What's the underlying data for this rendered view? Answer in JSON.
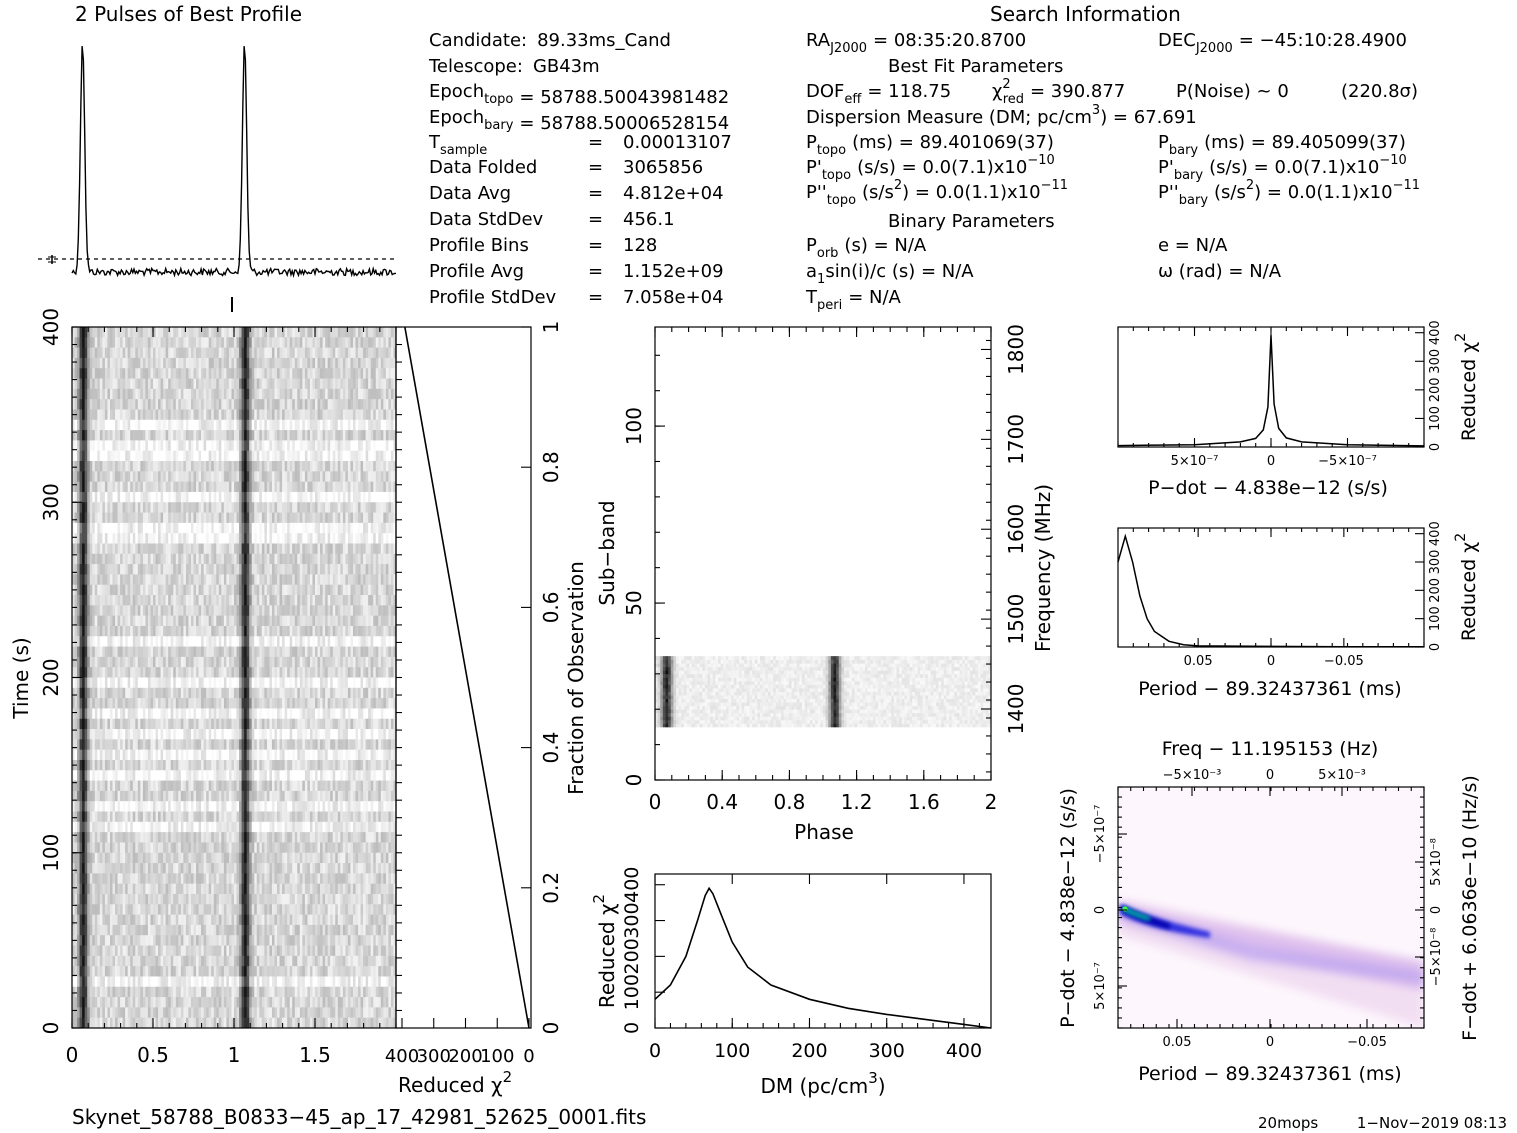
{
  "header": {
    "profile_title": "2 Pulses of Best Profile",
    "search_title": "Search Information",
    "best_fit_title": "Best Fit Parameters",
    "binary_title": "Binary Parameters"
  },
  "info_left": [
    {
      "label": "Candidate:",
      "value": "89.33ms_Cand"
    },
    {
      "label": "Telescope:",
      "value": "GB43m"
    },
    {
      "label": "Epoch",
      "sub": "topo",
      "value": "= 58788.50043981482"
    },
    {
      "label": "Epoch",
      "sub": "bary",
      "value": "= 58788.50006528154"
    },
    {
      "label": "T",
      "sub": "sample",
      "eq": "=",
      "value": "0.00013107"
    },
    {
      "label": "Data Folded",
      "eq": "=",
      "value": "3065856"
    },
    {
      "label": "Data Avg",
      "eq": "=",
      "value": "4.812e+04"
    },
    {
      "label": "Data StdDev",
      "eq": "=",
      "value": "456.1"
    },
    {
      "label": "Profile Bins",
      "eq": "=",
      "value": "128"
    },
    {
      "label": "Profile Avg",
      "eq": "=",
      "value": "1.152e+09"
    },
    {
      "label": "Profile StdDev",
      "eq": "=",
      "value": "7.058e+04"
    }
  ],
  "info_mid": {
    "ra": {
      "label": "RA",
      "sub": "J2000",
      "value": "= 08:35:20.8700"
    },
    "dec": {
      "label": "DEC",
      "sub": "J2000",
      "value": "= −45:10:28.4900"
    },
    "dof": {
      "label": "DOF",
      "sub": "eff",
      "value": "= 118.75"
    },
    "chi": {
      "label": "χ",
      "sup": "2",
      "sub": "red",
      "value": "= 390.877"
    },
    "pnoise": "P(Noise) ~ 0",
    "sigma": "(220.8σ)",
    "dm_line": {
      "text": "Dispersion Measure (DM; pc/cm",
      "sup": "3",
      "value": ") = 67.691"
    },
    "ptopo": {
      "label": "P",
      "sub": "topo",
      "value": "(ms) =  89.401069(37)"
    },
    "pbary": {
      "label": "P",
      "sub": "bary",
      "value": "(ms) =  89.405099(37)"
    },
    "pdtopo": {
      "label": "P'",
      "sub": "topo",
      "value": "(s/s) = 0.0(7.1)x10",
      "sup": "−10"
    },
    "pdbary": {
      "label": "P'",
      "sub": "bary",
      "value": "(s/s) = 0.0(7.1)x10",
      "sup": "−10"
    },
    "pddtopo": {
      "label": "P''",
      "sub": "topo",
      "value": "(s/s",
      "sup2": "2",
      "value2": ") = 0.0(1.1)x10",
      "sup": "−11"
    },
    "pddbary": {
      "label": "P''",
      "sub": "bary",
      "value": "(s/s",
      "sup2": "2",
      "value2": ") = 0.0(1.1)x10",
      "sup": "−11"
    },
    "porb": {
      "label": "P",
      "sub": "orb",
      "value": "(s) = N/A"
    },
    "asini": {
      "label": "a",
      "sub": "1",
      "value": "sin(i)/c (s) = N/A"
    },
    "tperi": {
      "label": "T",
      "sub": "peri",
      "value": "= N/A"
    },
    "ecc": "e = N/A",
    "omega": "ω (rad) = N/A"
  },
  "footer": {
    "filename": "Skynet_58788_B0833−45_ap_17_42981_52625_0001.fits",
    "user": "20mops",
    "date": "1−Nov−2019 08:13"
  },
  "chart_data": [
    {
      "type": "line",
      "name": "profile",
      "title": "2 Pulses of Best Profile",
      "x_range": [
        0,
        2
      ],
      "pulse_centers": [
        0.065,
        1.065
      ],
      "pulse_width": 0.03,
      "mean_level_marker": "−− dashed average line",
      "error_bar": "-"
    },
    {
      "type": "heatmap",
      "name": "time-phase",
      "xlabel": "Phase",
      "ylabel": "Time (s)",
      "xlim": [
        0,
        2
      ],
      "ylim": [
        0,
        400
      ],
      "xticks": [
        "0",
        "0.5",
        "1",
        "1.5"
      ],
      "yticks": [
        "0",
        "100",
        "200",
        "300",
        "400"
      ],
      "pulse_phases": [
        0.07,
        1.07
      ]
    },
    {
      "type": "line",
      "name": "reduced-chi2-vs-time",
      "xlabel": "Reduced χ",
      "xlabel_sup": "2",
      "ylabel_right": "Fraction of Observation",
      "xticks": [
        "400",
        "300",
        "200",
        "100",
        "0"
      ],
      "yticks": [
        "0",
        "0.2",
        "0.4",
        "0.6",
        "0.8",
        "1"
      ],
      "x": [
        0,
        391
      ],
      "y": [
        0,
        1
      ]
    },
    {
      "type": "heatmap",
      "name": "subband-phase",
      "xlabel": "Phase",
      "ylabel": "Sub−band",
      "ylabel_right": "Frequency (MHz)",
      "xlim": [
        0,
        2
      ],
      "ylim": [
        0,
        128
      ],
      "xticks": [
        "0",
        "0.4",
        "0.8",
        "1.2",
        "1.6",
        "2"
      ],
      "yticks": [
        "0",
        "50",
        "100"
      ],
      "freq_ticks": [
        "1400",
        "1500",
        "1600",
        "1700",
        "1800"
      ],
      "freq_range": [
        1321,
        1825
      ],
      "occupied_subbands": [
        15,
        35
      ],
      "pulse_phases": [
        0.07,
        1.07
      ]
    },
    {
      "type": "line",
      "name": "dm-chi2",
      "xlabel": "DM (pc/cm",
      "xlabel_sup": "3",
      "xlabel_end": ")",
      "ylabel": "Reduced χ",
      "ylabel_sup": "2",
      "xlim": [
        0,
        435
      ],
      "ylim": [
        0,
        430
      ],
      "xticks": [
        "0",
        "100",
        "200",
        "300",
        "400"
      ],
      "yticks": [
        "0",
        "100",
        "200",
        "300",
        "400"
      ],
      "x": [
        0,
        20,
        40,
        55,
        65,
        70,
        75,
        85,
        100,
        120,
        150,
        200,
        250,
        300,
        350,
        400,
        435
      ],
      "y": [
        80,
        120,
        200,
        300,
        370,
        390,
        375,
        320,
        240,
        170,
        120,
        80,
        55,
        38,
        24,
        10,
        0
      ]
    },
    {
      "type": "line",
      "name": "pdot-chi2",
      "xlabel": "P−dot − 4.838e−12 (s/s)",
      "ylabel_right": "Reduced χ",
      "ylabel_sup": "2",
      "xlim": [
        1e-06,
        -1e-06
      ],
      "ylim": [
        0,
        420
      ],
      "xticks": [
        "5×10⁻⁷",
        "0",
        "−5×10⁻⁷"
      ],
      "yticks": [
        "0",
        "100",
        "200",
        "300",
        "400"
      ],
      "x": [
        1e-06,
        5e-07,
        2e-07,
        1e-07,
        5e-08,
        2e-08,
        0,
        -2e-08,
        -5e-08,
        -1e-07,
        -2e-07,
        -5e-07,
        -1e-06
      ],
      "y": [
        5,
        8,
        18,
        30,
        60,
        140,
        391,
        150,
        65,
        32,
        18,
        8,
        4
      ]
    },
    {
      "type": "line",
      "name": "period-chi2",
      "xlabel": "Period − 89.32437361 (ms)",
      "ylabel_right": "Reduced χ",
      "ylabel_sup": "2",
      "xlim": [
        0.105,
        -0.105
      ],
      "ylim": [
        0,
        420
      ],
      "xticks": [
        "0.05",
        "0",
        "−0.05"
      ],
      "yticks": [
        "0",
        "100",
        "200",
        "300",
        "400"
      ],
      "x": [
        0.105,
        0.1,
        0.095,
        0.09,
        0.085,
        0.08,
        0.07,
        0.06,
        0.05,
        0.0,
        -0.05,
        -0.105
      ],
      "y": [
        300,
        391,
        300,
        180,
        100,
        55,
        20,
        8,
        4,
        2,
        1,
        1
      ]
    },
    {
      "type": "heatmap",
      "name": "period-pdot",
      "title": "Freq − 11.195153 (Hz)",
      "xlabel": "Period − 89.32437361 (ms)",
      "ylabel": "P−dot − 4.838e−12 (s/s)",
      "ylabel_right": "F−dot + 6.0636e−10 (Hz/s)",
      "xticks": [
        "0.05",
        "0",
        "−0.05"
      ],
      "top_ticks": [
        "−5×10⁻³",
        "0",
        "5×10⁻³"
      ],
      "yticks": [
        "−5×10⁻⁷",
        "0",
        "5×10⁻⁷"
      ],
      "right_ticks": [
        "5×10⁻⁸",
        "0",
        "−5×10⁻⁸"
      ]
    }
  ]
}
